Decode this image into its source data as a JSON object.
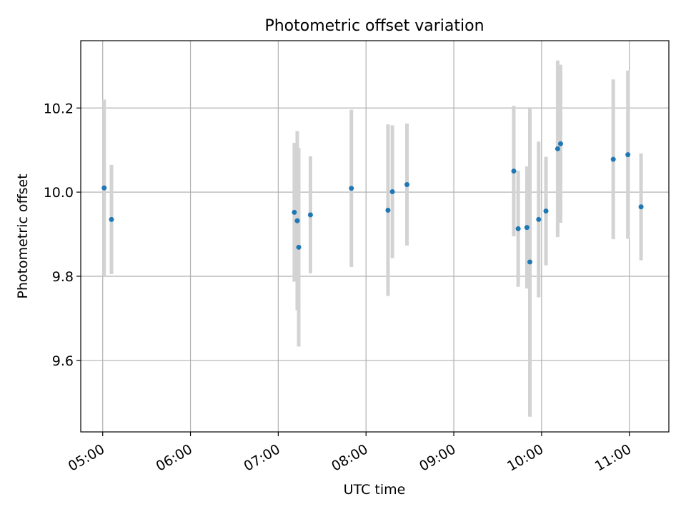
{
  "chart_data": {
    "type": "scatter",
    "title": "Photometric offset variation",
    "xlabel": "UTC time",
    "ylabel": "Photometric offset",
    "x_ticks": [
      "05:00",
      "06:00",
      "07:00",
      "08:00",
      "09:00",
      "10:00",
      "11:00"
    ],
    "y_ticks": [
      "9.6",
      "9.8",
      "10.0",
      "10.2"
    ],
    "xlim": [
      "04:45",
      "11:27"
    ],
    "ylim": [
      9.43,
      10.36
    ],
    "grid": true,
    "colors": {
      "marker": "#1f77b4",
      "errorbar": "#d3d3d3",
      "grid": "#b0b0b0"
    },
    "series": [
      {
        "points": [
          {
            "x": "05:01",
            "y": 10.01,
            "yerr": 0.21
          },
          {
            "x": "05:06",
            "y": 9.935,
            "yerr": 0.13
          },
          {
            "x": "07:11",
            "y": 9.952,
            "yerr": 0.165
          },
          {
            "x": "07:13",
            "y": 9.932,
            "yerr": 0.213
          },
          {
            "x": "07:14",
            "y": 9.869,
            "yerr": 0.236
          },
          {
            "x": "07:22",
            "y": 9.946,
            "yerr": 0.139
          },
          {
            "x": "07:50",
            "y": 10.009,
            "yerr": 0.187
          },
          {
            "x": "08:15",
            "y": 9.957,
            "yerr": 0.204
          },
          {
            "x": "08:18",
            "y": 10.001,
            "yerr": 0.158
          },
          {
            "x": "08:28",
            "y": 10.018,
            "yerr": 0.145
          },
          {
            "x": "09:41",
            "y": 10.05,
            "yerr": 0.155
          },
          {
            "x": "09:44",
            "y": 9.913,
            "yerr": 0.138
          },
          {
            "x": "09:50",
            "y": 9.916,
            "yerr": 0.145
          },
          {
            "x": "09:52",
            "y": 9.834,
            "yerr": 0.368
          },
          {
            "x": "09:58",
            "y": 9.935,
            "yerr": 0.185
          },
          {
            "x": "10:03",
            "y": 9.955,
            "yerr": 0.129
          },
          {
            "x": "10:11",
            "y": 10.103,
            "yerr": 0.21
          },
          {
            "x": "10:13",
            "y": 10.115,
            "yerr": 0.188
          },
          {
            "x": "10:49",
            "y": 10.078,
            "yerr": 0.19
          },
          {
            "x": "10:59",
            "y": 10.089,
            "yerr": 0.2
          },
          {
            "x": "11:08",
            "y": 9.965,
            "yerr": 0.127
          }
        ]
      }
    ]
  }
}
